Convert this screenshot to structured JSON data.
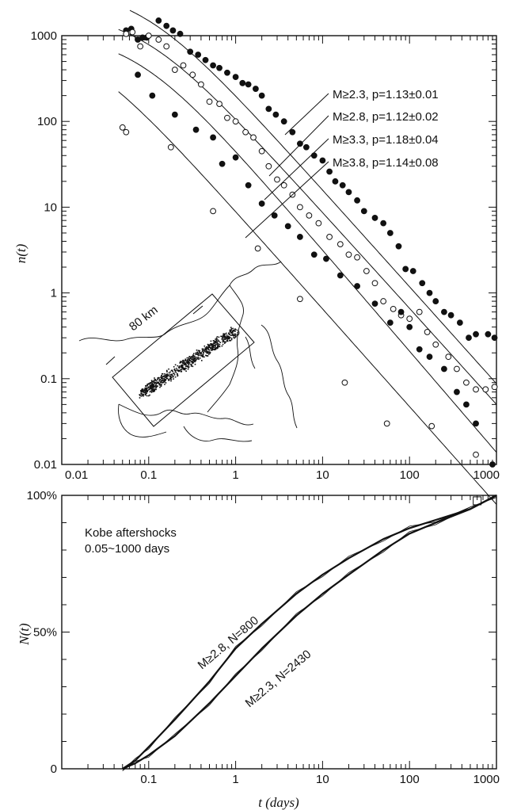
{
  "chart_data": [
    {
      "type": "scatter",
      "panel": "top",
      "xscale": "log",
      "yscale": "log",
      "xlim": [
        0.01,
        1000
      ],
      "ylim": [
        0.01,
        1000
      ],
      "xticklabels": [
        "0.01",
        "0.1",
        "1",
        "10",
        "100",
        "1000"
      ],
      "yticklabels": [
        "0.01",
        "0.1",
        "1",
        "10",
        "100",
        "1000"
      ],
      "ylabel": "n(t)",
      "series": [
        {
          "name": "M≥2.3, p=1.13±0.01",
          "marker": "filled",
          "points": [
            [
              0.055,
              1150
            ],
            [
              0.063,
              1200
            ],
            [
              0.075,
              900
            ],
            [
              0.085,
              950
            ],
            [
              0.095,
              950
            ],
            [
              0.13,
              1500
            ],
            [
              0.16,
              1300
            ],
            [
              0.19,
              1150
            ],
            [
              0.23,
              1050
            ],
            [
              0.3,
              650
            ],
            [
              0.37,
              600
            ],
            [
              0.45,
              520
            ],
            [
              0.55,
              450
            ],
            [
              0.65,
              420
            ],
            [
              0.8,
              370
            ],
            [
              1.0,
              330
            ],
            [
              1.2,
              280
            ],
            [
              1.4,
              270
            ],
            [
              1.7,
              240
            ],
            [
              2.0,
              200
            ],
            [
              2.4,
              140
            ],
            [
              2.9,
              120
            ],
            [
              3.6,
              100
            ],
            [
              4.5,
              75
            ],
            [
              5.5,
              55
            ],
            [
              6.5,
              50
            ],
            [
              8,
              40
            ],
            [
              10,
              35
            ],
            [
              12,
              26
            ],
            [
              14,
              20
            ],
            [
              17,
              18
            ],
            [
              20,
              15
            ],
            [
              25,
              12
            ],
            [
              30,
              9
            ],
            [
              40,
              7.5
            ],
            [
              50,
              6.5
            ],
            [
              60,
              5
            ],
            [
              75,
              3.5
            ],
            [
              90,
              1.9
            ],
            [
              110,
              1.8
            ],
            [
              140,
              1.3
            ],
            [
              170,
              1.0
            ],
            [
              200,
              0.8
            ],
            [
              250,
              0.6
            ],
            [
              300,
              0.55
            ],
            [
              380,
              0.45
            ],
            [
              480,
              0.3
            ],
            [
              580,
              0.33
            ],
            [
              800,
              0.33
            ],
            [
              950,
              0.3
            ]
          ]
        },
        {
          "name": "M≥2.8, p=1.12±0.02",
          "marker": "open",
          "points": [
            [
              0.055,
              1050
            ],
            [
              0.065,
              1100
            ],
            [
              0.08,
              750
            ],
            [
              0.1,
              1000
            ],
            [
              0.13,
              900
            ],
            [
              0.16,
              750
            ],
            [
              0.2,
              400
            ],
            [
              0.25,
              450
            ],
            [
              0.32,
              350
            ],
            [
              0.4,
              270
            ],
            [
              0.5,
              170
            ],
            [
              0.65,
              160
            ],
            [
              0.8,
              110
            ],
            [
              1.0,
              100
            ],
            [
              1.3,
              75
            ],
            [
              1.6,
              65
            ],
            [
              2.0,
              45
            ],
            [
              2.4,
              30
            ],
            [
              3.0,
              21
            ],
            [
              3.6,
              18
            ],
            [
              4.5,
              14
            ],
            [
              5.5,
              10
            ],
            [
              7,
              8
            ],
            [
              9,
              6.5
            ],
            [
              12,
              4.5
            ],
            [
              16,
              3.7
            ],
            [
              20,
              2.8
            ],
            [
              25,
              2.6
            ],
            [
              32,
              1.8
            ],
            [
              40,
              1.3
            ],
            [
              50,
              0.8
            ],
            [
              65,
              0.65
            ],
            [
              80,
              0.55
            ],
            [
              100,
              0.5
            ],
            [
              130,
              0.6
            ],
            [
              160,
              0.35
            ],
            [
              200,
              0.25
            ],
            [
              280,
              0.18
            ],
            [
              350,
              0.13
            ],
            [
              450,
              0.09
            ],
            [
              580,
              0.075
            ],
            [
              750,
              0.075
            ],
            [
              950,
              0.08
            ]
          ]
        },
        {
          "name": "M≥3.3, p=1.18±0.04",
          "marker": "filled",
          "points": [
            [
              0.075,
              350
            ],
            [
              0.11,
              200
            ],
            [
              0.2,
              120
            ],
            [
              0.35,
              80
            ],
            [
              0.55,
              65
            ],
            [
              0.7,
              32
            ],
            [
              1.0,
              38
            ],
            [
              1.4,
              18
            ],
            [
              2.0,
              11
            ],
            [
              2.8,
              8
            ],
            [
              4,
              6
            ],
            [
              5.5,
              4.5
            ],
            [
              8,
              2.8
            ],
            [
              11,
              2.5
            ],
            [
              16,
              1.6
            ],
            [
              25,
              1.2
            ],
            [
              40,
              0.75
            ],
            [
              60,
              0.45
            ],
            [
              80,
              0.6
            ],
            [
              100,
              0.4
            ],
            [
              130,
              0.22
            ],
            [
              170,
              0.18
            ],
            [
              250,
              0.13
            ],
            [
              350,
              0.07
            ],
            [
              450,
              0.05
            ],
            [
              580,
              0.03
            ],
            [
              900,
              0.01
            ]
          ]
        },
        {
          "name": "M≥3.8, p=1.14±0.08",
          "marker": "open",
          "points": [
            [
              0.05,
              85
            ],
            [
              0.055,
              75
            ],
            [
              0.18,
              50
            ],
            [
              0.55,
              9
            ],
            [
              1.8,
              3.3
            ],
            [
              5.5,
              0.85
            ],
            [
              18,
              0.09
            ],
            [
              55,
              0.03
            ],
            [
              180,
              0.028
            ],
            [
              580,
              0.013
            ]
          ]
        }
      ],
      "annotations": [
        {
          "text": "M≥2.3, p=1.13±0.01"
        },
        {
          "text": "M≥2.8, p=1.12±0.02"
        },
        {
          "text": "M≥3.3, p=1.18±0.04"
        },
        {
          "text": "M≥3.8, p=1.14±0.08"
        }
      ],
      "inset_label": "80 km"
    },
    {
      "type": "line",
      "panel": "bottom",
      "xscale": "log",
      "xlim": [
        0.01,
        1000
      ],
      "ylim": [
        0,
        100
      ],
      "xticklabels": [
        "0.1",
        "1",
        "10",
        "100",
        "1000"
      ],
      "yticklabels": [
        "0",
        "50%",
        "100%"
      ],
      "ylabel": "N(t)",
      "xlabel": "t (days)",
      "legend_text": [
        "Kobe aftershocks",
        "0.05~1000 days"
      ],
      "series": [
        {
          "name": "M≥2.8, N=800",
          "x": [
            0.05,
            0.07,
            0.1,
            0.2,
            0.5,
            1,
            2,
            5,
            10,
            20,
            50,
            100,
            200,
            500,
            1000
          ],
          "y": [
            0,
            3,
            8,
            18,
            32,
            44,
            53,
            64,
            71,
            77,
            84,
            88,
            91,
            95,
            100
          ]
        },
        {
          "name": "M≥2.3, N=2430",
          "x": [
            0.05,
            0.07,
            0.1,
            0.2,
            0.5,
            1,
            2,
            5,
            10,
            20,
            50,
            100,
            200,
            500,
            1000
          ],
          "y": [
            0,
            2,
            5,
            12,
            24,
            34,
            44,
            56,
            64,
            71,
            80,
            86,
            90,
            95,
            100
          ]
        }
      ],
      "curve_labels": [
        "M≥2.8, N=800",
        "M≥2.3, N=2430"
      ]
    }
  ]
}
